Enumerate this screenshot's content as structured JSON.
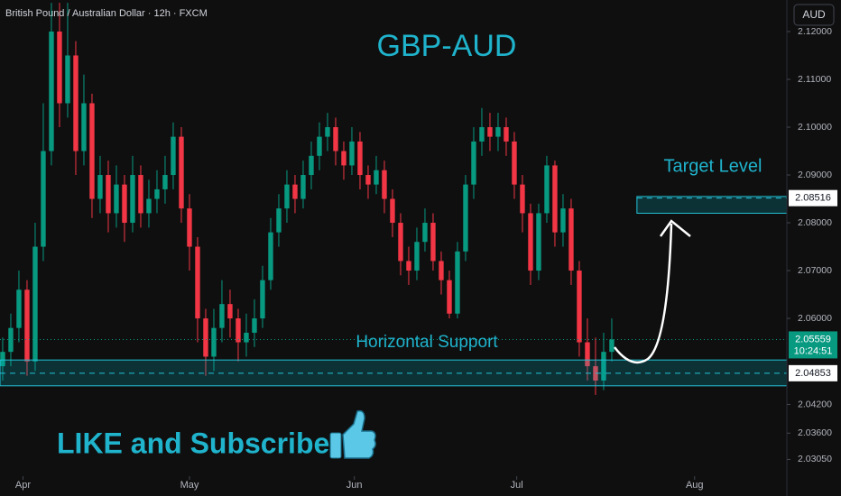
{
  "header": "British Pound / Australian Dollar · 12h · FXCM",
  "currency": "AUD",
  "chart_data": {
    "type": "candlestick",
    "title": "GBP-AUD",
    "up_color": "#089981",
    "down_color": "#f23645",
    "xlim": [
      -0.33,
      96.56
    ],
    "ylim": [
      2.027,
      2.1266
    ],
    "xticks": [
      {
        "value": 2.5,
        "label": "Apr"
      },
      {
        "value": 23,
        "label": "May"
      },
      {
        "value": 43.3,
        "label": "Jun"
      },
      {
        "value": 63.3,
        "label": "Jul"
      },
      {
        "value": 85.2,
        "label": "Aug"
      }
    ],
    "yticks": [
      {
        "value": 2.12,
        "label": "2.12000"
      },
      {
        "value": 2.11,
        "label": "2.11000"
      },
      {
        "value": 2.1,
        "label": "2.10000"
      },
      {
        "value": 2.09,
        "label": "2.09000"
      },
      {
        "value": 2.08,
        "label": "2.08000"
      },
      {
        "value": 2.07,
        "label": "2.07000"
      },
      {
        "value": 2.06,
        "label": "2.06000"
      },
      {
        "value": 2.042,
        "label": "2.04200"
      },
      {
        "value": 2.036,
        "label": "2.03600"
      },
      {
        "value": 2.0305,
        "label": "2.03050"
      }
    ],
    "grid": false,
    "open": [
      2.05,
      2.053,
      2.058,
      2.066,
      2.051,
      2.075,
      2.095,
      2.12,
      2.105,
      2.115,
      2.095,
      2.105,
      2.085,
      2.09,
      2.082,
      2.088,
      2.08,
      2.09,
      2.082,
      2.085,
      2.087,
      2.09,
      2.098,
      2.083,
      2.075,
      2.06,
      2.052,
      2.058,
      2.063,
      2.06,
      2.055,
      2.057,
      2.06,
      2.068,
      2.078,
      2.083,
      2.088,
      2.085,
      2.09,
      2.094,
      2.098,
      2.1,
      2.095,
      2.092,
      2.097,
      2.09,
      2.088,
      2.091,
      2.085,
      2.08,
      2.072,
      2.07,
      2.076,
      2.08,
      2.072,
      2.068,
      2.061,
      2.074,
      2.088,
      2.097,
      2.1,
      2.098,
      2.1,
      2.097,
      2.088,
      2.082,
      2.07,
      2.082,
      2.092,
      2.078,
      2.083,
      2.07,
      2.055,
      2.05,
      2.047,
      2.053
    ],
    "high": [
      2.056,
      2.061,
      2.07,
      2.068,
      2.08,
      2.105,
      2.126,
      2.126,
      2.126,
      2.118,
      2.111,
      2.107,
      2.094,
      2.093,
      2.092,
      2.09,
      2.094,
      2.092,
      2.089,
      2.091,
      2.094,
      2.101,
      2.1,
      2.086,
      2.077,
      2.062,
      2.062,
      2.068,
      2.066,
      2.062,
      2.061,
      2.064,
      2.071,
      2.081,
      2.086,
      2.091,
      2.09,
      2.093,
      2.097,
      2.101,
      2.103,
      2.102,
      2.097,
      2.1,
      2.099,
      2.092,
      2.094,
      2.093,
      2.087,
      2.082,
      2.075,
      2.079,
      2.083,
      2.082,
      2.074,
      2.07,
      2.076,
      2.09,
      2.1,
      2.104,
      2.103,
      2.103,
      2.102,
      2.099,
      2.09,
      2.084,
      2.084,
      2.094,
      2.093,
      2.086,
      2.085,
      2.072,
      2.06,
      2.056,
      2.057,
      2.06
    ],
    "low": [
      2.047,
      2.05,
      2.055,
      2.048,
      2.049,
      2.072,
      2.092,
      2.1,
      2.102,
      2.09,
      2.092,
      2.081,
      2.082,
      2.078,
      2.079,
      2.076,
      2.078,
      2.079,
      2.079,
      2.082,
      2.084,
      2.087,
      2.08,
      2.07,
      2.055,
      2.048,
      2.049,
      2.055,
      2.056,
      2.051,
      2.052,
      2.054,
      2.058,
      2.066,
      2.075,
      2.08,
      2.082,
      2.083,
      2.087,
      2.091,
      2.095,
      2.092,
      2.089,
      2.09,
      2.087,
      2.085,
      2.086,
      2.082,
      2.077,
      2.069,
      2.067,
      2.068,
      2.074,
      2.07,
      2.065,
      2.06,
      2.06,
      2.072,
      2.085,
      2.094,
      2.095,
      2.095,
      2.094,
      2.085,
      2.078,
      2.067,
      2.068,
      2.08,
      2.075,
      2.075,
      2.067,
      2.052,
      2.047,
      2.044,
      2.045,
      2.051
    ],
    "close": [
      2.053,
      2.058,
      2.066,
      2.051,
      2.075,
      2.095,
      2.12,
      2.105,
      2.115,
      2.095,
      2.105,
      2.085,
      2.09,
      2.082,
      2.088,
      2.08,
      2.09,
      2.082,
      2.085,
      2.087,
      2.09,
      2.098,
      2.083,
      2.075,
      2.06,
      2.052,
      2.058,
      2.063,
      2.06,
      2.055,
      2.057,
      2.06,
      2.068,
      2.078,
      2.083,
      2.088,
      2.085,
      2.09,
      2.094,
      2.098,
      2.1,
      2.095,
      2.092,
      2.097,
      2.09,
      2.088,
      2.091,
      2.085,
      2.08,
      2.072,
      2.07,
      2.076,
      2.08,
      2.072,
      2.068,
      2.061,
      2.074,
      2.088,
      2.097,
      2.1,
      2.098,
      2.1,
      2.097,
      2.088,
      2.082,
      2.07,
      2.082,
      2.092,
      2.078,
      2.083,
      2.07,
      2.055,
      2.05,
      2.047,
      2.053,
      2.0556
    ],
    "zones": [
      {
        "name": "Target Level",
        "top": 2.0855,
        "bottom": 2.082,
        "level": 2.08516,
        "from": 78.1
      },
      {
        "name": "Horizontal Support",
        "top": 2.0513,
        "bottom": 2.0459,
        "level": 2.04853,
        "from": -0.33
      }
    ],
    "last_price": {
      "value": 2.05559,
      "countdown": "10:24:51"
    },
    "call_to_action": "LIKE and Subscribe"
  }
}
